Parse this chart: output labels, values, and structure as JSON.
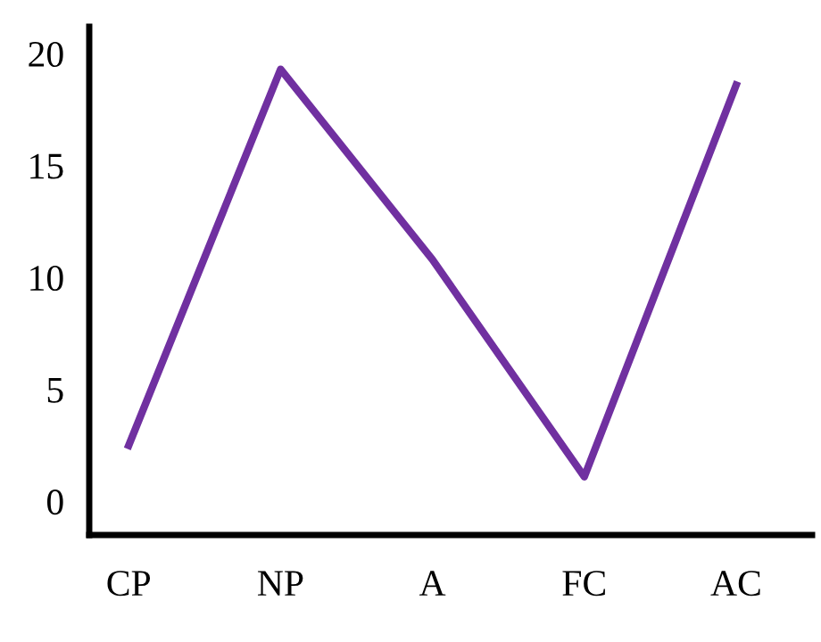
{
  "chart_data": {
    "type": "line",
    "categories": [
      "CP",
      "NP",
      "A",
      "FC",
      "AC"
    ],
    "series": [
      {
        "color": "#7030a0",
        "values": [
          2.5,
          19.3,
          10.8,
          1.1,
          18.6
        ]
      }
    ],
    "ylim": [
      -1.5,
      21.2
    ],
    "yticks": [
      0,
      5,
      10,
      15,
      20
    ],
    "grid": false,
    "marker": "none",
    "line_style": "solid",
    "legend": false
  }
}
